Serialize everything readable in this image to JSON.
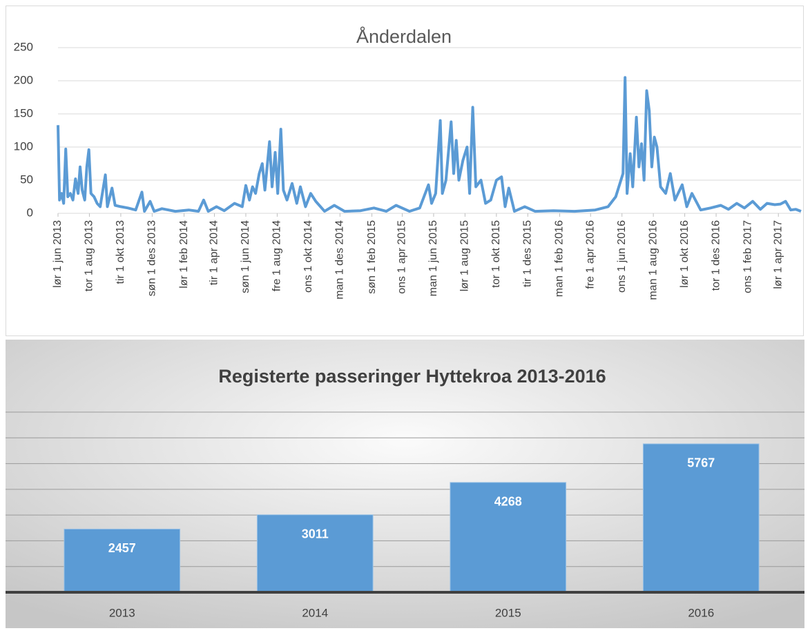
{
  "chart_data": [
    {
      "type": "line",
      "title": "Ånderdalen",
      "color": "#5b9bd5",
      "x": [
        "2013-06-01",
        "2013-06-04",
        "2013-06-08",
        "2013-06-12",
        "2013-06-16",
        "2013-06-20",
        "2013-06-25",
        "2013-06-30",
        "2013-07-05",
        "2013-07-10",
        "2013-07-14",
        "2013-07-18",
        "2013-07-23",
        "2013-07-27",
        "2013-07-31",
        "2013-08-04",
        "2013-08-10",
        "2013-08-16",
        "2013-08-22",
        "2013-09-01",
        "2013-09-05",
        "2013-09-14",
        "2013-09-20",
        "2013-10-01",
        "2013-10-15",
        "2013-10-30",
        "2013-11-11",
        "2013-11-16",
        "2013-11-27",
        "2013-12-05",
        "2013-12-20",
        "2014-01-15",
        "2014-02-10",
        "2014-03-01",
        "2014-03-11",
        "2014-03-20",
        "2014-04-05",
        "2014-04-20",
        "2014-05-10",
        "2014-05-25",
        "2014-06-01",
        "2014-06-08",
        "2014-06-14",
        "2014-06-20",
        "2014-06-27",
        "2014-07-03",
        "2014-07-08",
        "2014-07-17",
        "2014-07-22",
        "2014-07-28",
        "2014-08-02",
        "2014-08-08",
        "2014-08-13",
        "2014-08-20",
        "2014-08-30",
        "2014-09-08",
        "2014-09-15",
        "2014-09-25",
        "2014-10-05",
        "2014-10-15",
        "2014-11-01",
        "2014-11-20",
        "2014-12-10",
        "2015-01-10",
        "2015-02-05",
        "2015-03-01",
        "2015-03-20",
        "2015-04-15",
        "2015-05-05",
        "2015-05-22",
        "2015-05-28",
        "2015-06-05",
        "2015-06-14",
        "2015-06-18",
        "2015-06-25",
        "2015-07-05",
        "2015-07-10",
        "2015-07-15",
        "2015-07-20",
        "2015-07-28",
        "2015-08-05",
        "2015-08-10",
        "2015-08-16",
        "2015-08-22",
        "2015-09-01",
        "2015-09-10",
        "2015-09-20",
        "2015-10-01",
        "2015-10-11",
        "2015-10-18",
        "2015-10-25",
        "2015-11-05",
        "2015-11-25",
        "2015-12-15",
        "2016-01-20",
        "2016-03-01",
        "2016-04-10",
        "2016-05-05",
        "2016-05-20",
        "2016-06-03",
        "2016-06-07",
        "2016-06-11",
        "2016-06-17",
        "2016-06-22",
        "2016-06-29",
        "2016-07-04",
        "2016-07-09",
        "2016-07-14",
        "2016-07-19",
        "2016-07-24",
        "2016-07-29",
        "2016-08-03",
        "2016-08-08",
        "2016-08-15",
        "2016-08-25",
        "2016-09-03",
        "2016-09-12",
        "2016-09-26",
        "2016-10-05",
        "2016-10-15",
        "2016-11-01",
        "2016-11-20",
        "2016-12-10",
        "2016-12-25",
        "2017-01-10",
        "2017-01-25",
        "2017-02-10",
        "2017-02-25",
        "2017-03-10",
        "2017-03-25",
        "2017-04-05",
        "2017-04-15",
        "2017-04-25",
        "2017-05-05",
        "2017-05-15"
      ],
      "values": [
        133,
        20,
        30,
        15,
        97,
        25,
        30,
        20,
        52,
        30,
        70,
        35,
        20,
        70,
        96,
        30,
        25,
        15,
        10,
        58,
        10,
        38,
        12,
        10,
        8,
        5,
        32,
        3,
        18,
        3,
        7,
        3,
        5,
        3,
        20,
        3,
        10,
        4,
        15,
        10,
        42,
        20,
        40,
        30,
        60,
        75,
        35,
        108,
        40,
        92,
        30,
        127,
        35,
        20,
        45,
        15,
        40,
        10,
        30,
        18,
        3,
        12,
        3,
        4,
        8,
        3,
        12,
        3,
        8,
        43,
        15,
        30,
        140,
        30,
        50,
        138,
        60,
        110,
        50,
        80,
        100,
        30,
        160,
        40,
        50,
        15,
        20,
        50,
        55,
        10,
        38,
        3,
        10,
        3,
        4,
        3,
        5,
        10,
        25,
        60,
        205,
        30,
        90,
        40,
        145,
        70,
        105,
        50,
        185,
        155,
        70,
        115,
        100,
        40,
        30,
        60,
        20,
        43,
        10,
        30,
        5,
        8,
        12,
        6,
        15,
        8,
        18,
        6,
        15,
        13,
        14,
        18,
        5,
        6,
        3
      ],
      "xlim": [
        "2013-06-01",
        "2017-05-15"
      ],
      "xticks": [
        {
          "value": "2013-06-01",
          "label": "lør 1 jun 2013"
        },
        {
          "value": "2013-08-01",
          "label": "tor 1 aug 2013"
        },
        {
          "value": "2013-10-01",
          "label": "tir 1 okt 2013"
        },
        {
          "value": "2013-12-01",
          "label": "søn 1 des 2013"
        },
        {
          "value": "2014-02-01",
          "label": "lør 1 feb 2014"
        },
        {
          "value": "2014-04-01",
          "label": "tir 1 apr 2014"
        },
        {
          "value": "2014-06-01",
          "label": "søn 1 jun 2014"
        },
        {
          "value": "2014-08-01",
          "label": "fre 1 aug 2014"
        },
        {
          "value": "2014-10-01",
          "label": "ons 1 okt 2014"
        },
        {
          "value": "2014-12-01",
          "label": "man 1 des 2014"
        },
        {
          "value": "2015-02-01",
          "label": "søn 1 feb 2015"
        },
        {
          "value": "2015-04-01",
          "label": "ons 1 apr 2015"
        },
        {
          "value": "2015-06-01",
          "label": "man 1 jun 2015"
        },
        {
          "value": "2015-08-01",
          "label": "lør 1 aug 2015"
        },
        {
          "value": "2015-10-01",
          "label": "tor 1 okt 2015"
        },
        {
          "value": "2015-12-01",
          "label": "tir 1 des 2015"
        },
        {
          "value": "2016-02-01",
          "label": "man 1 feb 2016"
        },
        {
          "value": "2016-04-01",
          "label": "fre 1 apr 2016"
        },
        {
          "value": "2016-06-01",
          "label": "ons 1 jun 2016"
        },
        {
          "value": "2016-08-01",
          "label": "man 1 aug 2016"
        },
        {
          "value": "2016-10-01",
          "label": "lør 1 okt 2016"
        },
        {
          "value": "2016-12-01",
          "label": "tor 1 des 2016"
        },
        {
          "value": "2017-02-01",
          "label": "ons 1 feb 2017"
        },
        {
          "value": "2017-04-01",
          "label": "lør 1 apr 2017"
        }
      ],
      "ylim": [
        0,
        250
      ],
      "yticks": [
        0,
        50,
        100,
        150,
        200,
        250
      ],
      "grid": true
    },
    {
      "type": "bar",
      "title": "Registerte passeringer Hyttekroa 2013-2016",
      "color": "#5b9bd5",
      "categories": [
        "2013",
        "2014",
        "2015",
        "2016"
      ],
      "values": [
        2457,
        3011,
        4268,
        5767
      ],
      "ylim": [
        0,
        7000
      ],
      "yticks": [
        0,
        1000,
        2000,
        3000,
        4000,
        5000,
        6000,
        7000
      ],
      "grid": true
    }
  ]
}
